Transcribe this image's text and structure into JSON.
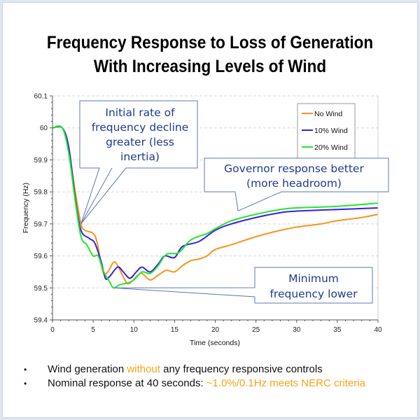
{
  "title": {
    "line1": "Frequency Response to Loss of Generation",
    "line2": "With Increasing Levels of Wind"
  },
  "chart_data": {
    "type": "line",
    "title": "Frequency Response to Loss of Generation With Increasing Levels of Wind",
    "xlabel": "Time (seconds)",
    "ylabel": "Frequency (Hz)",
    "xlim": [
      0,
      40
    ],
    "ylim": [
      59.4,
      60.1
    ],
    "xticks": [
      0,
      5,
      10,
      15,
      20,
      25,
      30,
      35,
      40
    ],
    "yticks": [
      59.4,
      59.5,
      59.6,
      59.7,
      59.8,
      59.9,
      60,
      60.1
    ],
    "xtick_labels": [
      "0",
      "5",
      "10",
      "15",
      "20",
      "25",
      "30",
      "35",
      "40"
    ],
    "ytick_labels": [
      "59.4",
      "59.5",
      "59.6",
      "59.7",
      "59.8",
      "59.9",
      "60",
      "60.1"
    ],
    "grid": "horizontal-dashed",
    "legend_position": "top-right",
    "series": [
      {
        "name": "No Wind",
        "color": "#f7941d",
        "points": [
          [
            0,
            60
          ],
          [
            1.2,
            60
          ],
          [
            2,
            59.93
          ],
          [
            2.8,
            59.8
          ],
          [
            3.5,
            59.7
          ],
          [
            4,
            59.68
          ],
          [
            5,
            59.67
          ],
          [
            5.5,
            59.64
          ],
          [
            6.2,
            59.55
          ],
          [
            6.8,
            59.55
          ],
          [
            7.5,
            59.58
          ],
          [
            8,
            59.57
          ],
          [
            9,
            59.52
          ],
          [
            9.5,
            59.515
          ],
          [
            10.5,
            59.54
          ],
          [
            11,
            59.545
          ],
          [
            12,
            59.525
          ],
          [
            13,
            59.54
          ],
          [
            14,
            59.555
          ],
          [
            15,
            59.55
          ],
          [
            16,
            59.57
          ],
          [
            17,
            59.585
          ],
          [
            18,
            59.59
          ],
          [
            19,
            59.6
          ],
          [
            20,
            59.62
          ],
          [
            22,
            59.635
          ],
          [
            25,
            59.66
          ],
          [
            28,
            59.68
          ],
          [
            30,
            59.69
          ],
          [
            33,
            59.7
          ],
          [
            35,
            59.71
          ],
          [
            38,
            59.72
          ],
          [
            40,
            59.73
          ]
        ]
      },
      {
        "name": "10% Wind",
        "color": "#3a1fe0",
        "points": [
          [
            0,
            60
          ],
          [
            1.2,
            60
          ],
          [
            2,
            59.94
          ],
          [
            2.8,
            59.78
          ],
          [
            3.5,
            59.68
          ],
          [
            4.5,
            59.655
          ],
          [
            5.2,
            59.64
          ],
          [
            6,
            59.58
          ],
          [
            6.5,
            59.53
          ],
          [
            7,
            59.535
          ],
          [
            8,
            59.565
          ],
          [
            8.7,
            59.55
          ],
          [
            9.5,
            59.53
          ],
          [
            10.3,
            59.55
          ],
          [
            11,
            59.565
          ],
          [
            12,
            59.55
          ],
          [
            13,
            59.575
          ],
          [
            13.8,
            59.6
          ],
          [
            15,
            59.595
          ],
          [
            16,
            59.63
          ],
          [
            18,
            59.645
          ],
          [
            20,
            59.68
          ],
          [
            22,
            59.7
          ],
          [
            25,
            59.72
          ],
          [
            28,
            59.735
          ],
          [
            30,
            59.74
          ],
          [
            35,
            59.745
          ],
          [
            40,
            59.75
          ]
        ]
      },
      {
        "name": "20% Wind",
        "color": "#22e82a",
        "points": [
          [
            0,
            60
          ],
          [
            1.2,
            60
          ],
          [
            2,
            59.92
          ],
          [
            2.8,
            59.77
          ],
          [
            3.5,
            59.66
          ],
          [
            4.2,
            59.635
          ],
          [
            5,
            59.6
          ],
          [
            5.6,
            59.6
          ],
          [
            6.3,
            59.55
          ],
          [
            7,
            59.52
          ],
          [
            7.5,
            59.5
          ],
          [
            8.3,
            59.51
          ],
          [
            9.2,
            59.515
          ],
          [
            10,
            59.525
          ],
          [
            11,
            59.55
          ],
          [
            12,
            59.545
          ],
          [
            13,
            59.57
          ],
          [
            14,
            59.605
          ],
          [
            15.5,
            59.61
          ],
          [
            17,
            59.65
          ],
          [
            19,
            59.67
          ],
          [
            20,
            59.685
          ],
          [
            22,
            59.71
          ],
          [
            25,
            59.73
          ],
          [
            28,
            59.745
          ],
          [
            30,
            59.75
          ],
          [
            35,
            59.755
          ],
          [
            40,
            59.765
          ]
        ]
      }
    ],
    "annotations": [
      {
        "name": "initial-rate-callout",
        "lines": [
          "Initial rate of",
          "frequency decline",
          "greater (less",
          "inertia)"
        ],
        "points_to": [
          3.5,
          59.7
        ]
      },
      {
        "name": "governor-response-callout",
        "lines": [
          "Governor response better",
          "(more headroom)"
        ],
        "points_to": [
          29,
          59.745
        ]
      },
      {
        "name": "minimum-frequency-callout",
        "lines": [
          "Minimum",
          "frequency lower"
        ],
        "points_to": [
          7.5,
          59.5
        ]
      }
    ]
  },
  "bullets": [
    {
      "before": "Wind generation ",
      "highlight": "without",
      "after": " any frequency responsive controls"
    },
    {
      "before": "Nominal response at 40 seconds: ",
      "highlight": "~1.0%/0.1Hz meets NERC criteria",
      "after": ""
    }
  ],
  "colors": {
    "highlight": "#f5a31a",
    "callout_text": "#1f3a93",
    "callout_border": "#5b77b8"
  }
}
